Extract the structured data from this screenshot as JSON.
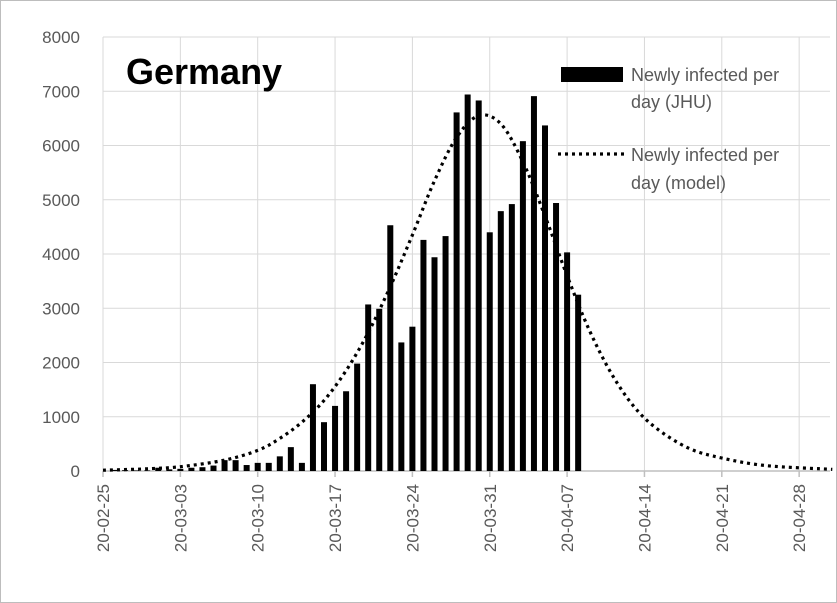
{
  "chart_data": {
    "type": "bar",
    "title": "Germany",
    "xlabel": "",
    "ylabel": "",
    "ylim": [
      0,
      8000
    ],
    "yticks": [
      "0",
      "1000",
      "2000",
      "3000",
      "4000",
      "5000",
      "6000",
      "7000",
      "8000"
    ],
    "xlim": [
      "2020-02-25",
      "2020-05-01"
    ],
    "xticks": [
      {
        "date": "2020-02-25",
        "label": "20-02-25"
      },
      {
        "date": "2020-03-03",
        "label": "20-03-03"
      },
      {
        "date": "2020-03-10",
        "label": "20-03-10"
      },
      {
        "date": "2020-03-17",
        "label": "20-03-17"
      },
      {
        "date": "2020-03-24",
        "label": "20-03-24"
      },
      {
        "date": "2020-03-31",
        "label": "20-03-31"
      },
      {
        "date": "2020-04-07",
        "label": "20-04-07"
      },
      {
        "date": "2020-04-14",
        "label": "20-04-14"
      },
      {
        "date": "2020-04-21",
        "label": "20-04-21"
      },
      {
        "date": "2020-04-28",
        "label": "20-04-28"
      }
    ],
    "grid": true,
    "legend_position": "top-right",
    "colors": {
      "bars": "#000000",
      "model": "#000000",
      "grid": "#d9d9d9",
      "axis_text": "#595959"
    },
    "series": [
      {
        "name": "Newly infected per day (JHU)",
        "legend_lines": [
          "Newly infected per",
          "day (JHU)"
        ],
        "type": "bar",
        "points": [
          {
            "x": "2020-02-26",
            "y": 20
          },
          {
            "x": "2020-02-27",
            "y": 15
          },
          {
            "x": "2020-02-28",
            "y": 10
          },
          {
            "x": "2020-02-29",
            "y": 10
          },
          {
            "x": "2020-03-01",
            "y": 60
          },
          {
            "x": "2020-03-02",
            "y": 30
          },
          {
            "x": "2020-03-03",
            "y": 40
          },
          {
            "x": "2020-03-04",
            "y": 60
          },
          {
            "x": "2020-03-05",
            "y": 70
          },
          {
            "x": "2020-03-06",
            "y": 100
          },
          {
            "x": "2020-03-07",
            "y": 200
          },
          {
            "x": "2020-03-08",
            "y": 200
          },
          {
            "x": "2020-03-09",
            "y": 110
          },
          {
            "x": "2020-03-10",
            "y": 150
          },
          {
            "x": "2020-03-11",
            "y": 150
          },
          {
            "x": "2020-03-12",
            "y": 270
          },
          {
            "x": "2020-03-13",
            "y": 440
          },
          {
            "x": "2020-03-14",
            "y": 150
          },
          {
            "x": "2020-03-15",
            "y": 1600
          },
          {
            "x": "2020-03-16",
            "y": 900
          },
          {
            "x": "2020-03-17",
            "y": 1200
          },
          {
            "x": "2020-03-18",
            "y": 1470
          },
          {
            "x": "2020-03-19",
            "y": 1980
          },
          {
            "x": "2020-03-20",
            "y": 3070
          },
          {
            "x": "2020-03-21",
            "y": 2990
          },
          {
            "x": "2020-03-22",
            "y": 4530
          },
          {
            "x": "2020-03-23",
            "y": 2370
          },
          {
            "x": "2020-03-24",
            "y": 2660
          },
          {
            "x": "2020-03-25",
            "y": 4260
          },
          {
            "x": "2020-03-26",
            "y": 3940
          },
          {
            "x": "2020-03-27",
            "y": 4330
          },
          {
            "x": "2020-03-28",
            "y": 6610
          },
          {
            "x": "2020-03-29",
            "y": 6940
          },
          {
            "x": "2020-03-30",
            "y": 6830
          },
          {
            "x": "2020-03-31",
            "y": 4400
          },
          {
            "x": "2020-04-01",
            "y": 4790
          },
          {
            "x": "2020-04-02",
            "y": 4920
          },
          {
            "x": "2020-04-03",
            "y": 6080
          },
          {
            "x": "2020-04-04",
            "y": 6910
          },
          {
            "x": "2020-04-05",
            "y": 6370
          },
          {
            "x": "2020-04-06",
            "y": 4940
          },
          {
            "x": "2020-04-07",
            "y": 4030
          },
          {
            "x": "2020-04-08",
            "y": 3250
          }
        ]
      },
      {
        "name": "Newly infected per day (model)",
        "legend_lines": [
          "Newly infected per",
          "day (model)"
        ],
        "type": "line",
        "style": "dotted",
        "points": [
          {
            "x": "2020-02-25",
            "y": 15
          },
          {
            "x": "2020-02-29",
            "y": 40
          },
          {
            "x": "2020-03-03",
            "y": 80
          },
          {
            "x": "2020-03-07",
            "y": 200
          },
          {
            "x": "2020-03-10",
            "y": 380
          },
          {
            "x": "2020-03-12",
            "y": 600
          },
          {
            "x": "2020-03-14",
            "y": 900
          },
          {
            "x": "2020-03-16",
            "y": 1300
          },
          {
            "x": "2020-03-18",
            "y": 1850
          },
          {
            "x": "2020-03-20",
            "y": 2550
          },
          {
            "x": "2020-03-22",
            "y": 3400
          },
          {
            "x": "2020-03-24",
            "y": 4350
          },
          {
            "x": "2020-03-26",
            "y": 5350
          },
          {
            "x": "2020-03-28",
            "y": 6150
          },
          {
            "x": "2020-03-30",
            "y": 6550
          },
          {
            "x": "2020-04-01",
            "y": 6400
          },
          {
            "x": "2020-04-03",
            "y": 5700
          },
          {
            "x": "2020-04-05",
            "y": 4700
          },
          {
            "x": "2020-04-07",
            "y": 3600
          },
          {
            "x": "2020-04-09",
            "y": 2600
          },
          {
            "x": "2020-04-11",
            "y": 1800
          },
          {
            "x": "2020-04-13",
            "y": 1200
          },
          {
            "x": "2020-04-15",
            "y": 800
          },
          {
            "x": "2020-04-18",
            "y": 420
          },
          {
            "x": "2020-04-21",
            "y": 240
          },
          {
            "x": "2020-04-25",
            "y": 100
          },
          {
            "x": "2020-05-01",
            "y": 30
          }
        ]
      }
    ]
  }
}
